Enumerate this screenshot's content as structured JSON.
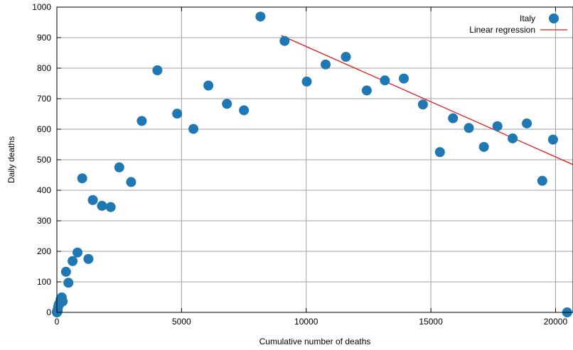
{
  "chart_data": {
    "type": "scatter",
    "xlabel": "Cumulative number of deaths",
    "ylabel": "Daily deaths",
    "xlim": [
      0,
      20700
    ],
    "ylim": [
      0,
      1000
    ],
    "xticks": [
      0,
      5000,
      10000,
      15000,
      20000
    ],
    "yticks": [
      0,
      100,
      200,
      300,
      400,
      500,
      600,
      700,
      800,
      900,
      1000
    ],
    "grid": true,
    "legend_position": "top-right",
    "colors": {
      "points": "#1f77b4",
      "regression": "#e41a1c",
      "grid": "#a0a0a0"
    },
    "series": [
      {
        "name": "Italy",
        "type": "scatter",
        "x": [
          2,
          3,
          7,
          10,
          12,
          17,
          21,
          29,
          34,
          52,
          79,
          107,
          148,
          197,
          233,
          366,
          463,
          631,
          827,
          1016,
          1266,
          1441,
          1809,
          2158,
          2503,
          2978,
          3405,
          4032,
          4825,
          5476,
          6077,
          6820,
          7503,
          8165,
          9134,
          10023,
          10779,
          11591,
          12428,
          13155,
          13915,
          14681,
          15362,
          15887,
          16523,
          17127,
          17669,
          18279,
          18849,
          19468,
          19899,
          20465
        ],
        "y": [
          0,
          1,
          4,
          3,
          2,
          5,
          4,
          8,
          5,
          18,
          27,
          28,
          41,
          49,
          36,
          133,
          97,
          168,
          196,
          439,
          175,
          368,
          349,
          345,
          475,
          427,
          627,
          793,
          651,
          601,
          743,
          683,
          662,
          969,
          889,
          756,
          812,
          837,
          727,
          760,
          766,
          681,
          525,
          636,
          604,
          542,
          610,
          570,
          619,
          431,
          566,
          0
        ]
      },
      {
        "name": "Linear regression",
        "type": "line",
        "x": [
          9000,
          20700
        ],
        "y": [
          907,
          484
        ]
      }
    ]
  }
}
